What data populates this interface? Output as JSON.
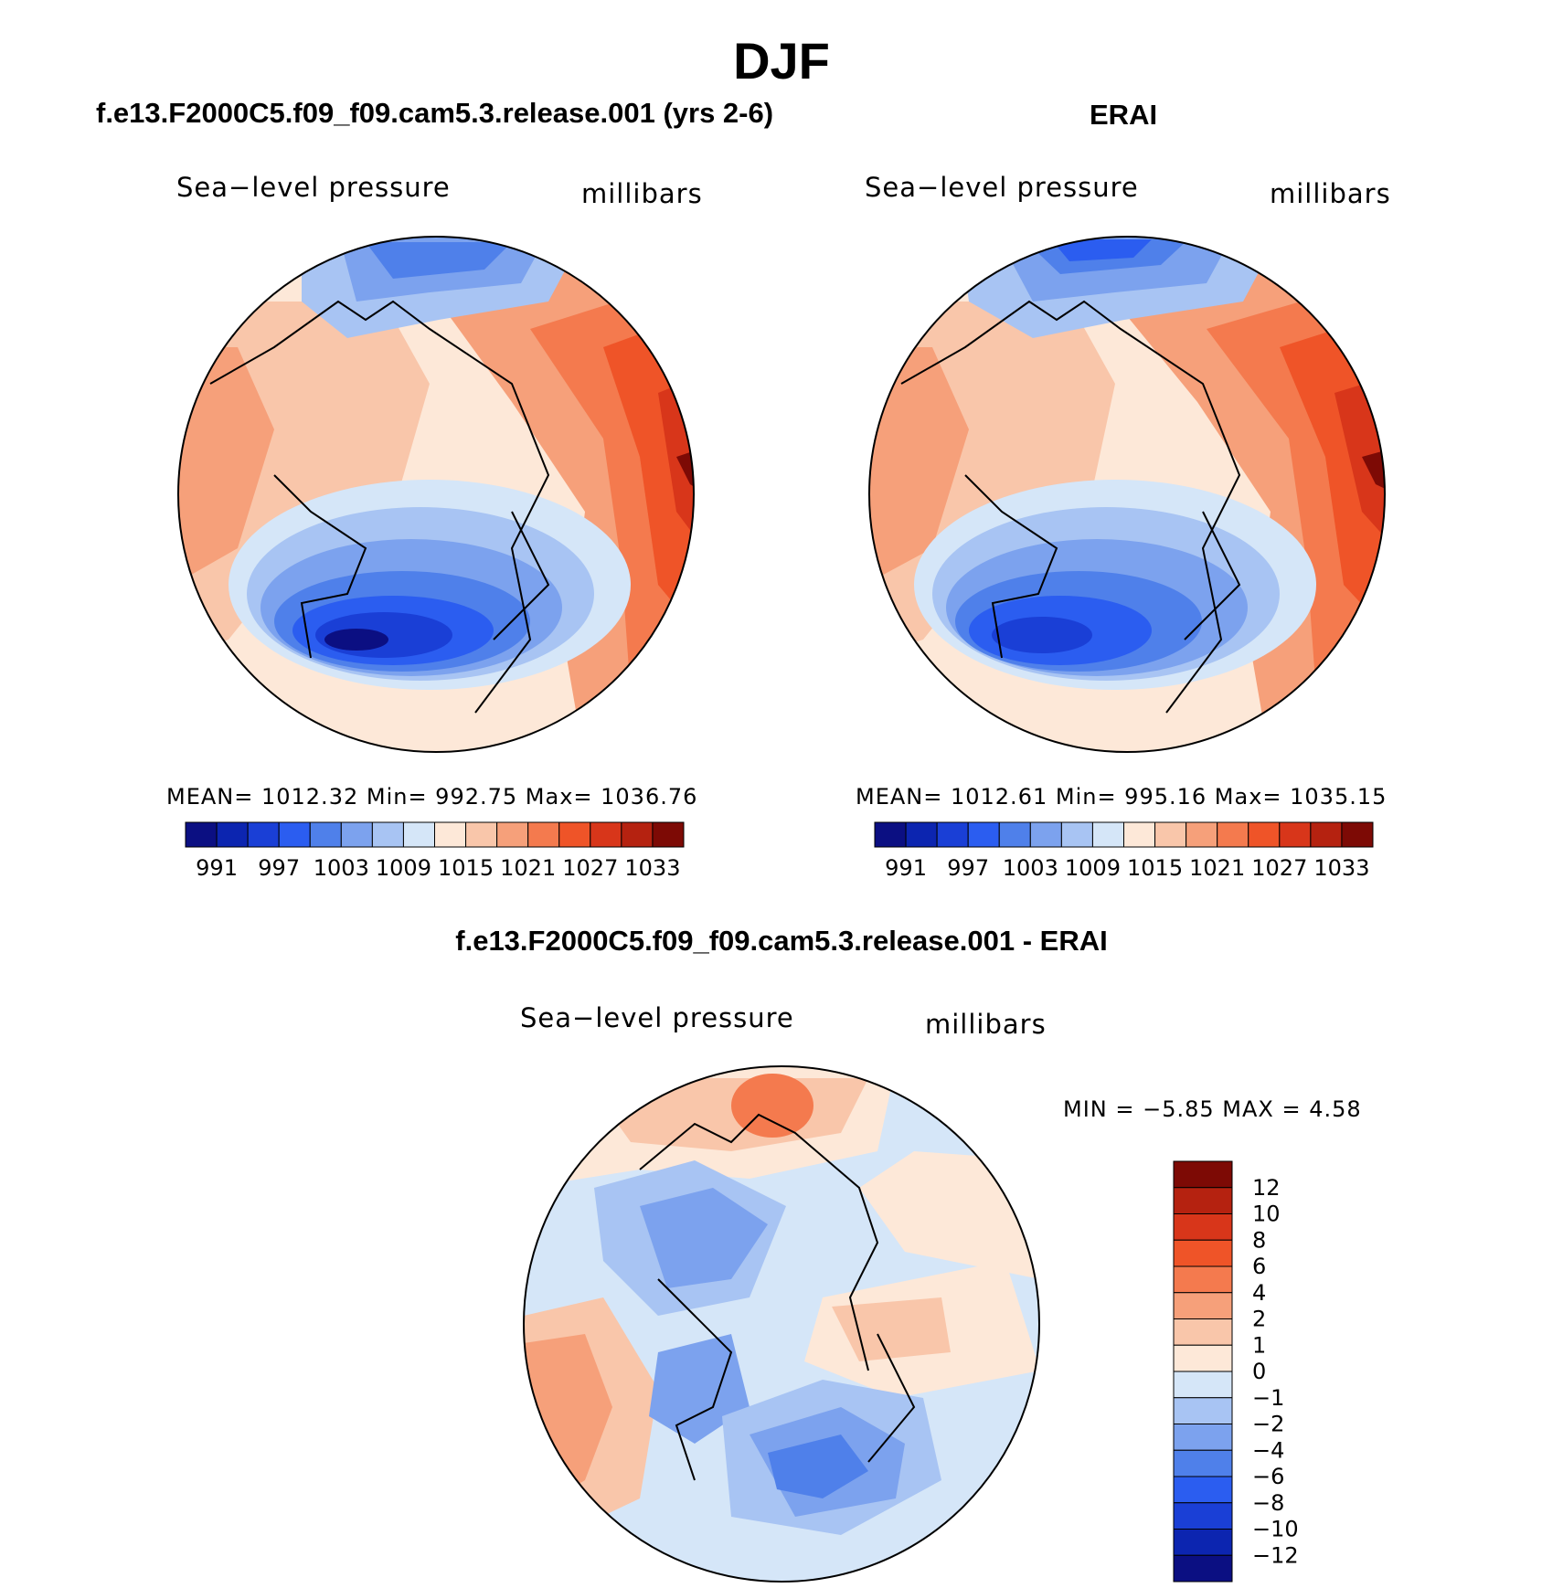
{
  "figure": {
    "title": "DJF"
  },
  "panels": [
    {
      "title": "f.e13.F2000C5.f09_f09.cam5.3.release.001 (yrs 2-6)",
      "variable": "Sea−level pressure",
      "units": "millibars",
      "stats_text": "MEAN=  1012.32   Min=  992.75   Max=  1036.76"
    },
    {
      "title": "ERAI",
      "variable": "Sea−level pressure",
      "units": "millibars",
      "stats_text": "MEAN=  1012.61   Min=  995.16   Max=  1035.15"
    },
    {
      "title": "f.e13.F2000C5.f09_f09.cam5.3.release.001 - ERAI",
      "variable": "Sea−level pressure",
      "units": "millibars",
      "stats_text": "MIN =   −5.85  MAX =     4.58"
    }
  ],
  "colorbar_abs": {
    "tick_labels": [
      "991",
      "997",
      "1003",
      "1009",
      "1015",
      "1021",
      "1027",
      "1033"
    ],
    "colors": [
      "#0b0f82",
      "#0c25b0",
      "#1a3fd6",
      "#2b5df0",
      "#4f80ea",
      "#7ca2ee",
      "#a8c4f3",
      "#d5e6f8",
      "#fde8d8",
      "#f9c6aa",
      "#f6a07a",
      "#f47a4e",
      "#ef5428",
      "#d8361a",
      "#b52210",
      "#7d0a05"
    ]
  },
  "colorbar_diff": {
    "tick_labels": [
      "12",
      "10",
      "8",
      "6",
      "4",
      "2",
      "1",
      "0",
      "−1",
      "−2",
      "−4",
      "−6",
      "−8",
      "−10",
      "−12"
    ],
    "colors": [
      "#7d0a05",
      "#b52210",
      "#d8361a",
      "#ef5428",
      "#f47a4e",
      "#f6a07a",
      "#f9c6aa",
      "#fde8d8",
      "#d5e6f8",
      "#a8c4f3",
      "#7ca2ee",
      "#4f80ea",
      "#2b5df0",
      "#1a3fd6",
      "#0c25b0",
      "#0b0f82"
    ]
  }
}
